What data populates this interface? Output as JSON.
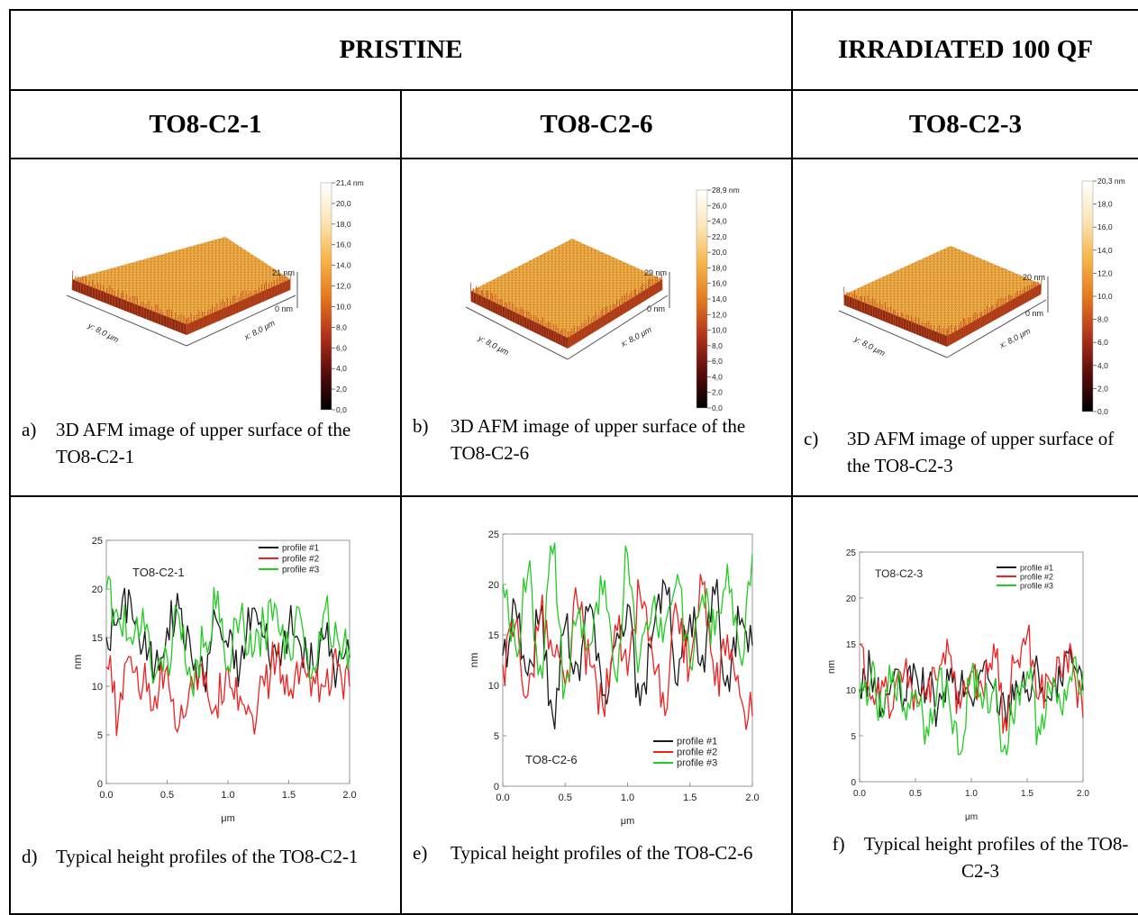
{
  "headers": {
    "pristine": "PRISTINE",
    "irradiated": "IRRADIATED 100 QF",
    "samples": [
      "TO8-C2-1",
      "TO8-C2-6",
      "TO8-C2-3"
    ]
  },
  "afm": [
    {
      "scale_ticks": [
        "21,4 nm",
        "20,0",
        "18,0",
        "16,0",
        "14,0",
        "12,0",
        "10,0",
        "8,0",
        "6,0",
        "4,0",
        "2,0",
        "0,0"
      ],
      "z_top": "21 nm",
      "z_bottom": "0 nm",
      "y_axis": "y: 8,0 μm",
      "x_axis": "x: 8,0 μm",
      "caption_label": "a)",
      "caption": "3D AFM image of upper surface of the TO8-C2-1"
    },
    {
      "scale_ticks": [
        "28,9 nm",
        "26,0",
        "24,0",
        "22,0",
        "20,0",
        "18,0",
        "16,0",
        "14,0",
        "12,0",
        "10,0",
        "8,0",
        "6,0",
        "4,0",
        "2,0",
        "0,0"
      ],
      "z_top": "29 nm",
      "z_bottom": "0 nm",
      "y_axis": "y: 8,0 μm",
      "x_axis": "x: 8,0 μm",
      "caption_label": "b)",
      "caption": "3D AFM image of upper surface of the TO8-C2-6"
    },
    {
      "scale_ticks": [
        "20,3 nm",
        "18,0",
        "16,0",
        "14,0",
        "12,0",
        "10,0",
        "8,0",
        "6,0",
        "4,0",
        "2,0",
        "0,0"
      ],
      "z_top": "20 nm",
      "z_bottom": "0 nm",
      "y_axis": "y: 8,0 μm",
      "x_axis": "x: 8,0 μm",
      "caption_label": "c)",
      "caption": "3D AFM image of upper surface of the TO8-C2-3"
    }
  ],
  "profile_captions": [
    {
      "label": "d)",
      "text": "Typical height profiles of the TO8-C2-1"
    },
    {
      "label": "e)",
      "text": "Typical height profiles of the TO8-C2-6"
    },
    {
      "label": "f)",
      "text": "Typical height profiles of the TO8-C2-3"
    }
  ],
  "colors": {
    "profile_1": "#1a1a1a",
    "profile_2": "#ee2222",
    "profile_3": "#22cc22",
    "colorbar": [
      "#000000",
      "#5a0c0c",
      "#b3341a",
      "#e57a1f",
      "#f6b64a",
      "#fbe6b8",
      "#ffffff"
    ]
  },
  "chart_data": [
    {
      "type": "line",
      "title": "TO8-C2-1",
      "xlabel": "μm",
      "ylabel": "nm",
      "xlim": [
        0,
        2.0
      ],
      "ylim": [
        0,
        25
      ],
      "xticks": [
        "0.0",
        "0.5",
        "1.0",
        "1.5",
        "2.0"
      ],
      "yticks": [
        "0",
        "5",
        "10",
        "15",
        "20",
        "25"
      ],
      "legend_position": "top-right",
      "x": [
        0.0,
        0.1,
        0.2,
        0.3,
        0.4,
        0.5,
        0.6,
        0.7,
        0.8,
        0.9,
        1.0,
        1.1,
        1.2,
        1.3,
        1.4,
        1.5,
        1.6,
        1.7,
        1.8,
        1.9,
        2.0
      ],
      "series": [
        {
          "name": "profile #1",
          "values": [
            15,
            17,
            19,
            14,
            12,
            16,
            18,
            13,
            11,
            17,
            14,
            12,
            18,
            15,
            13,
            16,
            14,
            12,
            15,
            12,
            13
          ]
        },
        {
          "name": "profile #2",
          "values": [
            12,
            7,
            13,
            10,
            9,
            12,
            6,
            11,
            10,
            8,
            12,
            9,
            7,
            10,
            13,
            9,
            12,
            11,
            10,
            12,
            10
          ]
        },
        {
          "name": "profile #3",
          "values": [
            20,
            17,
            15,
            18,
            11,
            13,
            17,
            10,
            14,
            18,
            12,
            17,
            13,
            16,
            18,
            14,
            17,
            12,
            18,
            15,
            14
          ]
        }
      ]
    },
    {
      "type": "line",
      "title": "TO8-C2-6",
      "xlabel": "μm",
      "ylabel": "nm",
      "xlim": [
        0,
        2.0
      ],
      "ylim": [
        0,
        25
      ],
      "xticks": [
        "0.0",
        "0.5",
        "1.0",
        "1.5",
        "2.0"
      ],
      "yticks": [
        "0",
        "5",
        "10",
        "15",
        "20",
        "25"
      ],
      "legend_position": "bottom-right",
      "x": [
        0.0,
        0.1,
        0.2,
        0.3,
        0.4,
        0.5,
        0.6,
        0.7,
        0.8,
        0.9,
        1.0,
        1.1,
        1.2,
        1.3,
        1.4,
        1.5,
        1.6,
        1.7,
        1.8,
        1.9,
        2.0
      ],
      "series": [
        {
          "name": "profile #1",
          "values": [
            13,
            18,
            11,
            17,
            7,
            16,
            12,
            18,
            9,
            14,
            18,
            8,
            15,
            20,
            10,
            17,
            13,
            19,
            11,
            16,
            14
          ]
        },
        {
          "name": "profile #2",
          "values": [
            12,
            16,
            9,
            17,
            13,
            10,
            18,
            12,
            8,
            16,
            11,
            19,
            13,
            7,
            17,
            12,
            20,
            10,
            15,
            9,
            7
          ]
        },
        {
          "name": "profile #3",
          "values": [
            20,
            14,
            21,
            12,
            23,
            10,
            17,
            14,
            19,
            11,
            23,
            13,
            18,
            16,
            21,
            12,
            19,
            15,
            22,
            13,
            23
          ]
        }
      ]
    },
    {
      "type": "line",
      "title": "TO8-C2-3",
      "xlabel": "μm",
      "ylabel": "nm",
      "xlim": [
        0,
        2.0
      ],
      "ylim": [
        0,
        25
      ],
      "xticks": [
        "0.0",
        "0.5",
        "1.0",
        "1.5",
        "2.0"
      ],
      "yticks": [
        "0",
        "5",
        "10",
        "15",
        "20",
        "25"
      ],
      "legend_position": "top-right",
      "x": [
        0.0,
        0.1,
        0.2,
        0.3,
        0.4,
        0.5,
        0.6,
        0.7,
        0.8,
        0.9,
        1.0,
        1.1,
        1.2,
        1.3,
        1.4,
        1.5,
        1.6,
        1.7,
        1.8,
        1.9,
        2.0
      ],
      "series": [
        {
          "name": "profile #1",
          "values": [
            10,
            12,
            8,
            11,
            9,
            12,
            10,
            8,
            11,
            10,
            9,
            12,
            10,
            8,
            11,
            10,
            12,
            9,
            11,
            13,
            10
          ]
        },
        {
          "name": "profile #2",
          "values": [
            15,
            9,
            11,
            8,
            12,
            10,
            9,
            11,
            14,
            8,
            12,
            10,
            15,
            7,
            13,
            16,
            9,
            11,
            12,
            14,
            7
          ]
        },
        {
          "name": "profile #3",
          "values": [
            9,
            11,
            7,
            12,
            8,
            10,
            6,
            11,
            9,
            3,
            12,
            8,
            10,
            4,
            9,
            12,
            6,
            10,
            8,
            11,
            12
          ]
        }
      ]
    }
  ]
}
